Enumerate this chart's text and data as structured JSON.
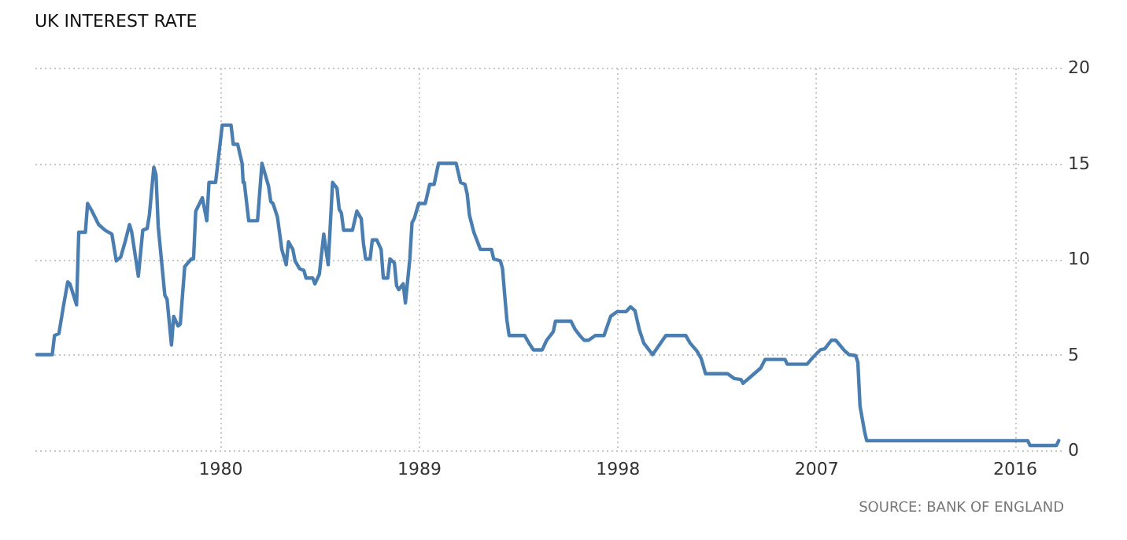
{
  "chart_data": {
    "type": "line",
    "title": "UK INTEREST RATE",
    "annotations": [
      "SOURCE: BANK OF ENGLAND"
    ],
    "xlim": [
      1971.6,
      2018.1
    ],
    "xticks": [
      1980,
      1989,
      1998,
      2007,
      2016
    ],
    "ylim": [
      0,
      20
    ],
    "yticks": [
      0,
      5,
      10,
      15,
      20
    ],
    "grid": true,
    "line_style": "solid",
    "series": [
      {
        "color": "#4a7eb0",
        "x": [
          1971.7,
          1972.4,
          1972.5,
          1972.7,
          1972.9,
          1973.1,
          1973.2,
          1973.5,
          1973.6,
          1973.9,
          1974.0,
          1974.2,
          1974.5,
          1974.8,
          1975.1,
          1975.3,
          1975.5,
          1975.7,
          1975.9,
          1976.0,
          1976.3,
          1976.5,
          1976.7,
          1976.8,
          1977.0,
          1977.1,
          1977.2,
          1977.3,
          1977.5,
          1977.6,
          1977.8,
          1977.9,
          1978.1,
          1978.2,
          1978.4,
          1978.7,
          1978.8,
          1978.9,
          1979.2,
          1979.4,
          1979.5,
          1979.8,
          1980.1,
          1980.5,
          1980.6,
          1980.8,
          1981.0,
          1981.05,
          1981.1,
          1981.3,
          1981.7,
          1981.9,
          1982.0,
          1982.2,
          1982.3,
          1982.4,
          1982.6,
          1982.8,
          1983.0,
          1983.1,
          1983.3,
          1983.4,
          1983.6,
          1983.8,
          1983.9,
          1984.2,
          1984.3,
          1984.5,
          1984.7,
          1984.8,
          1984.9,
          1985.1,
          1985.3,
          1985.4,
          1985.5,
          1985.6,
          1986.0,
          1986.2,
          1986.4,
          1986.5,
          1986.6,
          1986.8,
          1986.9,
          1987.1,
          1987.3,
          1987.4,
          1987.6,
          1987.7,
          1987.9,
          1988.0,
          1988.1,
          1988.3,
          1988.4,
          1988.6,
          1988.7,
          1988.8,
          1989.0,
          1989.3,
          1989.5,
          1989.7,
          1989.9,
          1990.7,
          1990.9,
          1991.1,
          1991.2,
          1991.3,
          1991.5,
          1991.8,
          1992.3,
          1992.4,
          1992.7,
          1992.8,
          1992.9,
          1993.0,
          1993.1,
          1993.8,
          1994.0,
          1994.2,
          1994.6,
          1994.8,
          1995.1,
          1995.2,
          1995.9,
          1996.1,
          1996.3,
          1996.5,
          1996.7,
          1997.0,
          1997.4,
          1997.7,
          1998.0,
          1998.4,
          1998.6,
          1998.8,
          1999.0,
          1999.2,
          1999.6,
          2000.2,
          2001.1,
          2001.3,
          2001.6,
          2001.8,
          2002.0,
          2003.0,
          2003.3,
          2003.6,
          2003.7,
          2004.1,
          2004.5,
          2004.7,
          2005.6,
          2005.7,
          2006.6,
          2006.9,
          2007.2,
          2007.4,
          2007.7,
          2007.9,
          2008.3,
          2008.5,
          2008.8,
          2008.9,
          2009.0,
          2009.2,
          2009.3,
          2016.6,
          2016.7,
          2017.9,
          2018.0
        ],
        "values": [
          5,
          5,
          6,
          6.1,
          7.5,
          8.8,
          8.7,
          7.6,
          11.4,
          11.4,
          12.9,
          12.5,
          11.8,
          11.5,
          11.3,
          9.9,
          10.1,
          10.9,
          11.8,
          11.4,
          9.1,
          11.5,
          11.6,
          12.3,
          14.8,
          14.4,
          11.7,
          10.5,
          8.1,
          7.9,
          5.5,
          7.0,
          6.5,
          6.6,
          9.6,
          10,
          10,
          12.5,
          13.2,
          12,
          14,
          14,
          17,
          17,
          16,
          16,
          15,
          14,
          14,
          12,
          12,
          15,
          14.6,
          13.8,
          13,
          12.9,
          12.2,
          10.5,
          9.7,
          10.9,
          10.5,
          9.9,
          9.5,
          9.4,
          9,
          9,
          8.7,
          9.2,
          11.3,
          10.5,
          9.7,
          14,
          13.7,
          12.6,
          12.4,
          11.5,
          11.5,
          12.5,
          12.1,
          10.8,
          10,
          10,
          11,
          11,
          10.5,
          9,
          9,
          10,
          9.8,
          8.6,
          8.4,
          8.7,
          7.7,
          10,
          11.9,
          12.1,
          12.9,
          12.9,
          13.9,
          13.9,
          15,
          15,
          14,
          13.9,
          13.4,
          12.3,
          11.4,
          10.5,
          10.5,
          10,
          9.9,
          9.5,
          8.1,
          6.8,
          6,
          6,
          5.6,
          5.25,
          5.25,
          5.75,
          6.2,
          6.75,
          6.75,
          6.3,
          6,
          5.75,
          5.75,
          6,
          6,
          7,
          7.25,
          7.25,
          7.5,
          7.3,
          6.3,
          5.6,
          5,
          6,
          6,
          5.6,
          5.2,
          4.8,
          4,
          4,
          3.75,
          3.7,
          3.5,
          3.9,
          4.3,
          4.75,
          4.75,
          4.5,
          4.5,
          4.9,
          5.25,
          5.3,
          5.75,
          5.75,
          5.2,
          5,
          4.95,
          4.6,
          2.3,
          1,
          0.5,
          0.5,
          0.25,
          0.25,
          0.5
        ]
      }
    ]
  }
}
